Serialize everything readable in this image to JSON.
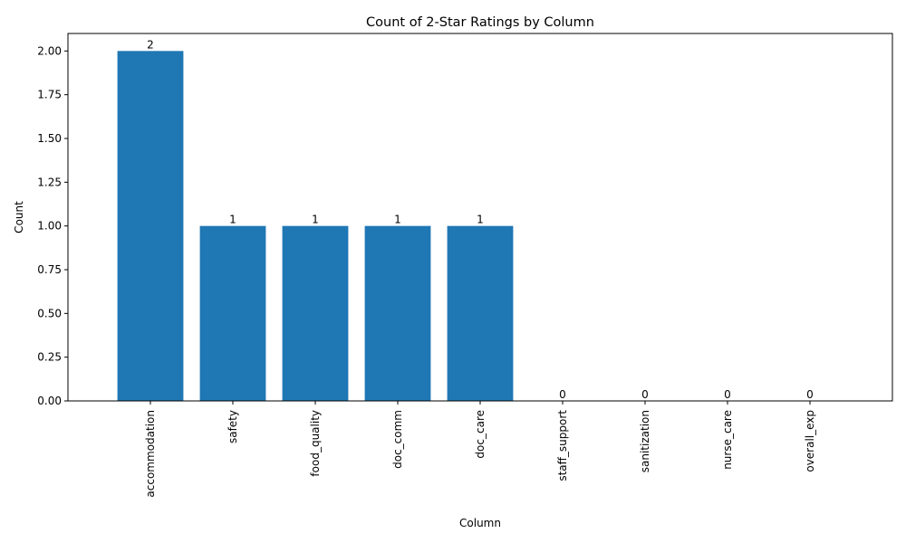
{
  "chart_data": {
    "type": "bar",
    "title": "Count of 2-Star Ratings by Column",
    "xlabel": "Column",
    "ylabel": "Count",
    "categories": [
      "accommodation",
      "safety",
      "food_quality",
      "doc_comm",
      "doc_care",
      "staff_support",
      "sanitization",
      "nurse_care",
      "overall_exp"
    ],
    "values": [
      2,
      1,
      1,
      1,
      1,
      0,
      0,
      0,
      0
    ],
    "data_labels": [
      "2",
      "1",
      "1",
      "1",
      "1",
      "0",
      "0",
      "0",
      "0"
    ],
    "ylim": [
      0,
      2.1
    ],
    "yticks": [
      0,
      0.25,
      0.5,
      0.75,
      1.0,
      1.25,
      1.5,
      1.75,
      2.0
    ],
    "ytick_labels": [
      "0.00",
      "0.25",
      "0.50",
      "0.75",
      "1.00",
      "1.25",
      "1.50",
      "1.75",
      "2.00"
    ],
    "grid": false,
    "legend": "none",
    "bar_color": "#1f77b4"
  }
}
